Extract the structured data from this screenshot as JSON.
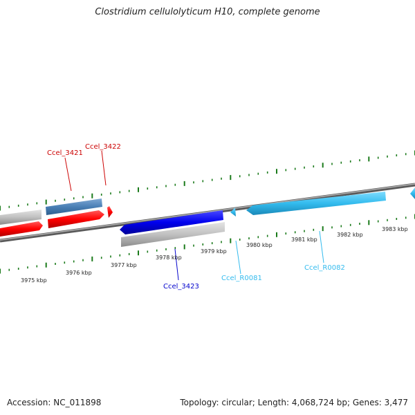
{
  "title": "Clostridium cellulolyticum H10, complete genome",
  "footer": {
    "accession": "Accession: NC_011898",
    "topology": "Topology: circular; Length: 4,068,724 bp; Genes: 3,477"
  },
  "colors": {
    "red_gene": "#ff0000",
    "steelblue_gene": "#4a7fb5",
    "blue_gene": "#0000ee",
    "cyan_gene": "#33bbee",
    "grey_gene": "#c0c0c0",
    "tick": "#1a7a1a",
    "backbone": "#808080"
  },
  "scale": {
    "labels": [
      "3975 kbp",
      "3976 kbp",
      "3977 kbp",
      "3978 kbp",
      "3979 kbp",
      "3980 kbp",
      "3981 kbp",
      "3982 kbp",
      "3983 kbp"
    ]
  },
  "genes": {
    "ccel_3421": {
      "label": "Ccel_3421"
    },
    "ccel_3422": {
      "label": "Ccel_3422"
    },
    "ccel_3423": {
      "label": "Ccel_3423"
    },
    "ccel_r0081": {
      "label": "Ccel_R0081"
    },
    "ccel_r0082": {
      "label": "Ccel_R0082"
    }
  }
}
